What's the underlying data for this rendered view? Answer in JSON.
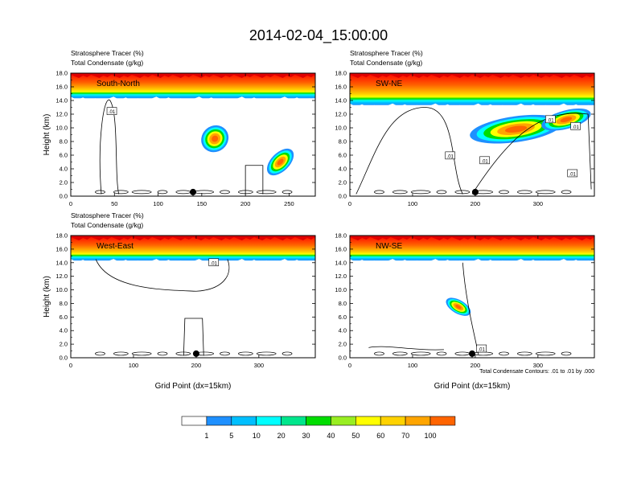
{
  "title": "2014-02-04_15:00:00",
  "footnote": "Total Condensate Contours: .01 to .01 by .000",
  "colorbar": {
    "labels": [
      "1",
      "5",
      "10",
      "20",
      "30",
      "40",
      "50",
      "60",
      "70",
      "100"
    ],
    "colors": [
      "#ffffff",
      "#1e90ff",
      "#00bfff",
      "#00ffff",
      "#00e68c",
      "#00dd00",
      "#99ee22",
      "#ffff00",
      "#ffd200",
      "#ffa500",
      "#ff6400",
      "#ff0000"
    ]
  },
  "chart_data": [
    {
      "type": "heatmap",
      "panel_label": "South-North",
      "title_left_1": "Stratosphere Tracer   (%)",
      "title_left_2": "Total Condensate   (g/kg)",
      "ylabel": "Height (km)",
      "xlabel": "",
      "xlim": [
        0,
        280
      ],
      "ylim": [
        0,
        18
      ],
      "xticks": [
        "0",
        "50",
        "100",
        "150",
        "200",
        "250"
      ],
      "yticks": [
        "0.0",
        "2.0",
        "4.0",
        "6.0",
        "8.0",
        "10.0",
        "12.0",
        "14.0",
        "16.0",
        "18.0"
      ],
      "tropopause_km": 15.5,
      "marker_x": 140,
      "blobs": [
        {
          "x": 165,
          "y": 8.4,
          "rx": 12,
          "ry": 1.4,
          "rot": -40
        },
        {
          "x": 240,
          "y": 5.0,
          "rx": 14,
          "ry": 1.0,
          "rot": -45
        }
      ],
      "contour_labels": [
        {
          "x": 47,
          "y": 12.4,
          "text": ".01"
        }
      ]
    },
    {
      "type": "heatmap",
      "panel_label": "SW-NE",
      "title_left_1": "Stratosphere Tracer   (%)",
      "title_left_2": "Total Condensate   (g/kg)",
      "ylabel": "",
      "xlabel": "",
      "xlim": [
        0,
        390
      ],
      "ylim": [
        0,
        18
      ],
      "xticks": [
        "0",
        "100",
        "200",
        "300"
      ],
      "yticks": [
        "0.0",
        "2.0",
        "4.0",
        "6.0",
        "8.0",
        "10.0",
        "12.0",
        "14.0",
        "16.0",
        "18.0"
      ],
      "tropopause_km": 14.5,
      "marker_x": 200,
      "blobs": [
        {
          "x": 265,
          "y": 9.8,
          "rx": 55,
          "ry": 1.4,
          "rot": -8
        },
        {
          "x": 345,
          "y": 11.2,
          "rx": 30,
          "ry": 1.0,
          "rot": -15
        }
      ],
      "contour_labels": [
        {
          "x": 320,
          "y": 11.2,
          "text": ".01"
        },
        {
          "x": 360,
          "y": 10.2,
          "text": ".01"
        },
        {
          "x": 160,
          "y": 5.9,
          "text": ".01"
        },
        {
          "x": 215,
          "y": 5.2,
          "text": ".01"
        },
        {
          "x": 355,
          "y": 3.3,
          "text": ".01"
        }
      ]
    },
    {
      "type": "heatmap",
      "panel_label": "West-East",
      "title_left_1": "Stratosphere Tracer   (%)",
      "title_left_2": "Total Condensate   (g/kg)",
      "ylabel": "Height (km)",
      "xlabel": "Grid Point (dx=15km)",
      "xlim": [
        0,
        390
      ],
      "ylim": [
        0,
        18
      ],
      "xticks": [
        "0",
        "100",
        "200",
        "300"
      ],
      "yticks": [
        "0.0",
        "2.0",
        "4.0",
        "6.0",
        "8.0",
        "10.0",
        "12.0",
        "14.0",
        "16.0",
        "18.0"
      ],
      "tropopause_km": 15.5,
      "marker_x": 200,
      "blobs": [],
      "contour_labels": [
        {
          "x": 228,
          "y": 14.0,
          "text": ".01"
        }
      ]
    },
    {
      "type": "heatmap",
      "panel_label": "NW-SE",
      "title_left_1": "",
      "title_left_2": "",
      "ylabel": "",
      "xlabel": "Grid Point (dx=15km)",
      "xlim": [
        0,
        390
      ],
      "ylim": [
        0,
        18
      ],
      "xticks": [
        "0",
        "100",
        "200",
        "300"
      ],
      "yticks": [
        "0.0",
        "2.0",
        "4.0",
        "6.0",
        "8.0",
        "10.0",
        "12.0",
        "14.0",
        "16.0",
        "18.0"
      ],
      "tropopause_km": 15.5,
      "marker_x": 195,
      "blobs": [
        {
          "x": 173,
          "y": 7.5,
          "rx": 8,
          "ry": 1.5,
          "rot": -60
        }
      ],
      "contour_labels": [
        {
          "x": 210,
          "y": 1.3,
          "text": ".01"
        }
      ]
    }
  ]
}
